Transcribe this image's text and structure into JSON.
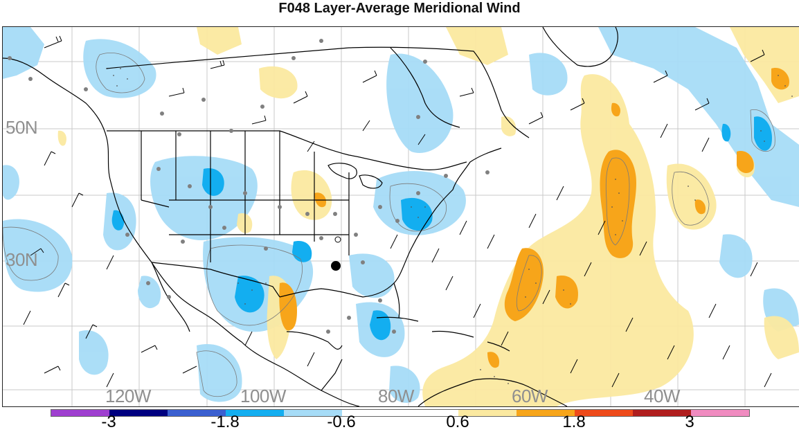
{
  "title": "F048 Layer-Average Meridional Wind",
  "lat_labels": [
    "50N",
    "30N"
  ],
  "lon_labels": [
    "120W",
    "100W",
    "80W",
    "60W",
    "40W"
  ],
  "colorbar": {
    "colors": [
      "#9f3fd0",
      "#000080",
      "#3a5fd0",
      "#13aef0",
      "#a6dcf7",
      "#ffffff",
      "#ffffff",
      "#fbe9a0",
      "#f7a51a",
      "#ee4a1a",
      "#b01e1e",
      "#f08bc0"
    ],
    "labels": [
      "-3",
      "-1.8",
      "-0.6",
      "0.6",
      "1.8",
      "3"
    ]
  },
  "map_colors": {
    "land_line": "#000000",
    "grid": "#c8c8c8",
    "light_blue": "#a6dcf7",
    "mid_blue": "#13aef0",
    "light_yellow": "#fbe9a0",
    "orange": "#f7a51a",
    "station": "#808080"
  }
}
